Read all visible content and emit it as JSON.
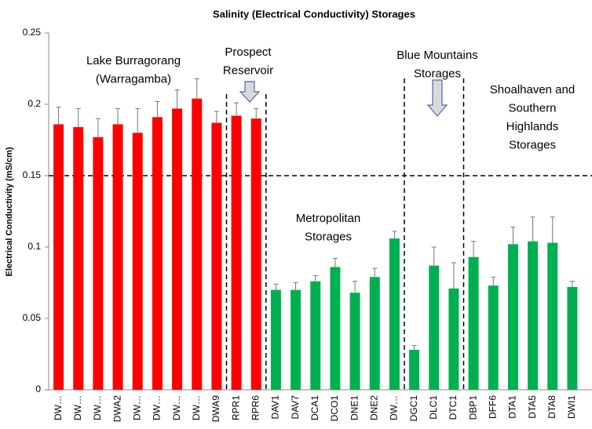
{
  "chart_data": {
    "type": "bar",
    "title": "Salinity (Electrical Conductivity) Storages",
    "y_label": "Electrical Conductivity (mS/cm)",
    "categories": [
      "DW…",
      "DW…",
      "DW…",
      "DWA2",
      "DW…",
      "DW…",
      "DW…",
      "DW…",
      "DWA9",
      "RPR1",
      "RPR6",
      "DAV1",
      "DAV7",
      "DCA1",
      "DCO1",
      "DNE1",
      "DNE2",
      "DW…",
      "DGC1",
      "DLC1",
      "DTC1",
      "DBP1",
      "DFF6",
      "DTA1",
      "DTA5",
      "DTA8",
      "DWI1"
    ],
    "values": [
      0.186,
      0.184,
      0.177,
      0.186,
      0.18,
      0.191,
      0.197,
      0.204,
      0.187,
      0.192,
      0.19,
      0.07,
      0.07,
      0.076,
      0.086,
      0.068,
      0.079,
      0.106,
      0.028,
      0.087,
      0.071,
      0.093,
      0.073,
      0.102,
      0.104,
      0.103,
      0.072
    ],
    "errors": [
      0.012,
      0.013,
      0.013,
      0.011,
      0.017,
      0.011,
      0.013,
      0.014,
      0.008,
      0.009,
      0.007,
      0.004,
      0.005,
      0.004,
      0.006,
      0.008,
      0.006,
      0.005,
      0.003,
      0.013,
      0.018,
      0.011,
      0.006,
      0.012,
      0.017,
      0.018,
      0.004
    ],
    "colors": [
      "#ff0000",
      "#ff0000",
      "#ff0000",
      "#ff0000",
      "#ff0000",
      "#ff0000",
      "#ff0000",
      "#ff0000",
      "#ff0000",
      "#ff0000",
      "#ff0000",
      "#00b050",
      "#00b050",
      "#00b050",
      "#00b050",
      "#00b050",
      "#00b050",
      "#00b050",
      "#00b050",
      "#00b050",
      "#00b050",
      "#00b050",
      "#00b050",
      "#00b050",
      "#00b050",
      "#00b050",
      "#00b050"
    ],
    "ylim": [
      0,
      0.25
    ],
    "yticks": [
      0,
      0.05,
      0.1,
      0.15,
      0.2,
      0.25
    ],
    "reference_line": 0.15,
    "annotations": [
      [
        "Lake Burragorang",
        "(Warragamba)"
      ],
      [
        "Prospect",
        "Reservoir"
      ],
      [
        "Blue Mountains",
        "Storages"
      ],
      [
        "Shoalhaven and",
        "Southern",
        "Highlands",
        "Storages"
      ],
      [
        "Metropolitan",
        "Storages"
      ]
    ]
  }
}
